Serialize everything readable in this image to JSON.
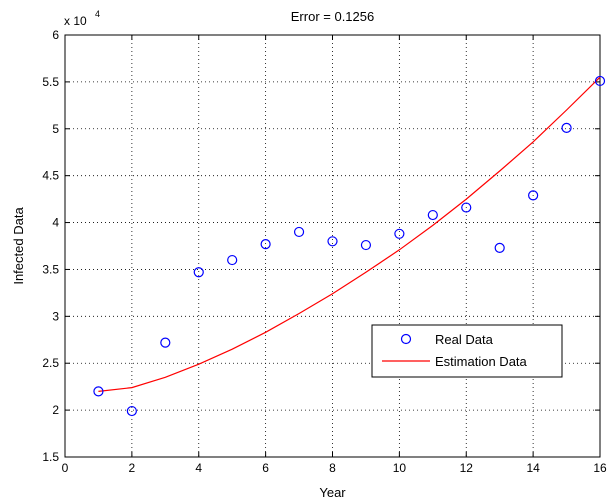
{
  "chart_data": {
    "type": "scatter",
    "title": "Error = 0.1256",
    "xlabel": "Year",
    "ylabel": "Infected Data",
    "exponent_label": "x 10",
    "exponent_power": "4",
    "xlim": [
      0,
      16
    ],
    "ylim": [
      1.5,
      6
    ],
    "x_ticks": [
      0,
      2,
      4,
      6,
      8,
      10,
      12,
      14,
      16
    ],
    "x_tick_labels": [
      "0",
      "2",
      "4",
      "6",
      "8",
      "10",
      "12",
      "14",
      "16"
    ],
    "y_ticks": [
      1.5,
      2,
      2.5,
      3,
      3.5,
      4,
      4.5,
      5,
      5.5,
      6
    ],
    "y_tick_labels": [
      "1.5",
      "2",
      "2.5",
      "3",
      "3.5",
      "4",
      "4.5",
      "5",
      "5.5",
      "6"
    ],
    "grid": true,
    "legend_position": "lower-right",
    "series": [
      {
        "name": "Real Data",
        "style": "circle",
        "color": "#0000ff",
        "x": [
          1,
          2,
          3,
          4,
          5,
          6,
          7,
          8,
          9,
          10,
          11,
          12,
          13,
          14,
          15,
          16
        ],
        "y": [
          2.2,
          1.99,
          2.72,
          3.47,
          3.6,
          3.77,
          3.9,
          3.8,
          3.76,
          3.88,
          4.08,
          4.16,
          3.73,
          4.29,
          5.01,
          5.51
        ]
      },
      {
        "name": "Estimation Data",
        "style": "line",
        "color": "#ff0000",
        "x": [
          1,
          2,
          3,
          4,
          5,
          6,
          7,
          8,
          9,
          10,
          11,
          12,
          13,
          14,
          15,
          16
        ],
        "y": [
          2.2,
          2.24,
          2.35,
          2.49,
          2.65,
          2.83,
          3.03,
          3.24,
          3.47,
          3.71,
          3.97,
          4.25,
          4.55,
          4.86,
          5.2,
          5.55
        ]
      }
    ]
  }
}
